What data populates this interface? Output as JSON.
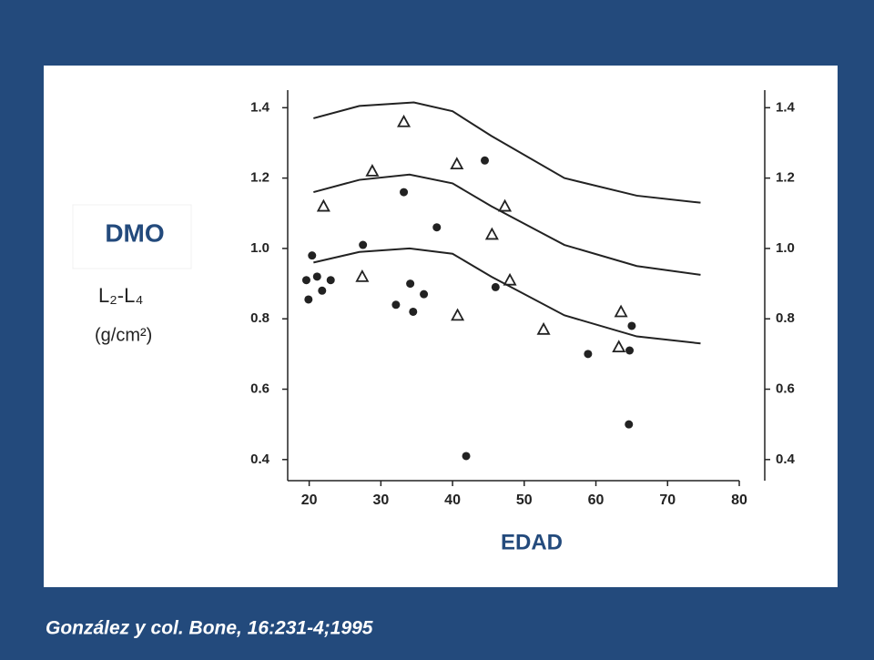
{
  "chart_data": {
    "type": "scatter",
    "ylabel": "DMO",
    "region": "L₂-L₄",
    "units": "(g/cm²)",
    "xlabel": "EDAD",
    "source": "González y col. Bone, 16:231-4;1995",
    "xlim": [
      17,
      80
    ],
    "xticks": [
      20,
      30,
      40,
      50,
      60,
      70,
      80
    ],
    "ylim": [
      0.34,
      1.45
    ],
    "yticks": [
      0.4,
      0.6,
      0.8,
      {
        "value": 1,
        "label": "1.0"
      },
      1.2,
      1.4
    ],
    "y2lim": [
      0.34,
      1.45
    ],
    "y2ticks": [
      0.4,
      0.6,
      0.8,
      {
        "value": 1,
        "label": "1.0"
      },
      1.2,
      1.4
    ],
    "color": "#222222",
    "series": [
      {
        "marker": "circle",
        "x": [
          19.6,
          20.4,
          19.9,
          21.1,
          21.8,
          23.0,
          27.5,
          32.1,
          33.2,
          34.1,
          34.5,
          36.0,
          37.8,
          44.5,
          46.0,
          41.9,
          58.9,
          65.0,
          64.7,
          64.6
        ],
        "values": [
          0.91,
          0.98,
          0.855,
          0.92,
          0.88,
          0.91,
          1.01,
          0.84,
          1.16,
          0.9,
          0.82,
          0.87,
          1.06,
          1.25,
          0.89,
          0.41,
          0.7,
          0.78,
          0.71,
          0.5
        ]
      },
      {
        "marker": "triangle",
        "x": [
          33.2,
          28.8,
          22.0,
          27.4,
          40.6,
          47.3,
          45.5,
          48.0,
          40.7,
          52.7,
          63.5,
          63.2
        ],
        "values": [
          1.36,
          1.22,
          1.12,
          0.92,
          1.24,
          1.12,
          1.04,
          0.91,
          0.81,
          0.77,
          0.82,
          0.72
        ]
      },
      {
        "marker": "line",
        "x": [
          20.6,
          27,
          34.6,
          40,
          45.4,
          55.6,
          65.7,
          74.6
        ],
        "values": [
          1.37,
          1.405,
          1.415,
          1.39,
          1.32,
          1.2,
          1.15,
          1.13
        ]
      },
      {
        "marker": "line",
        "x": [
          20.6,
          27,
          34,
          40,
          45.4,
          55.6,
          65.7,
          74.6
        ],
        "values": [
          1.16,
          1.195,
          1.21,
          1.185,
          1.12,
          1.01,
          0.95,
          0.925
        ]
      },
      {
        "marker": "line",
        "x": [
          20.6,
          27,
          34,
          40,
          45.4,
          55.6,
          65.7,
          74.6
        ],
        "values": [
          0.96,
          0.99,
          1.0,
          0.985,
          0.92,
          0.81,
          0.75,
          0.73
        ]
      }
    ]
  }
}
